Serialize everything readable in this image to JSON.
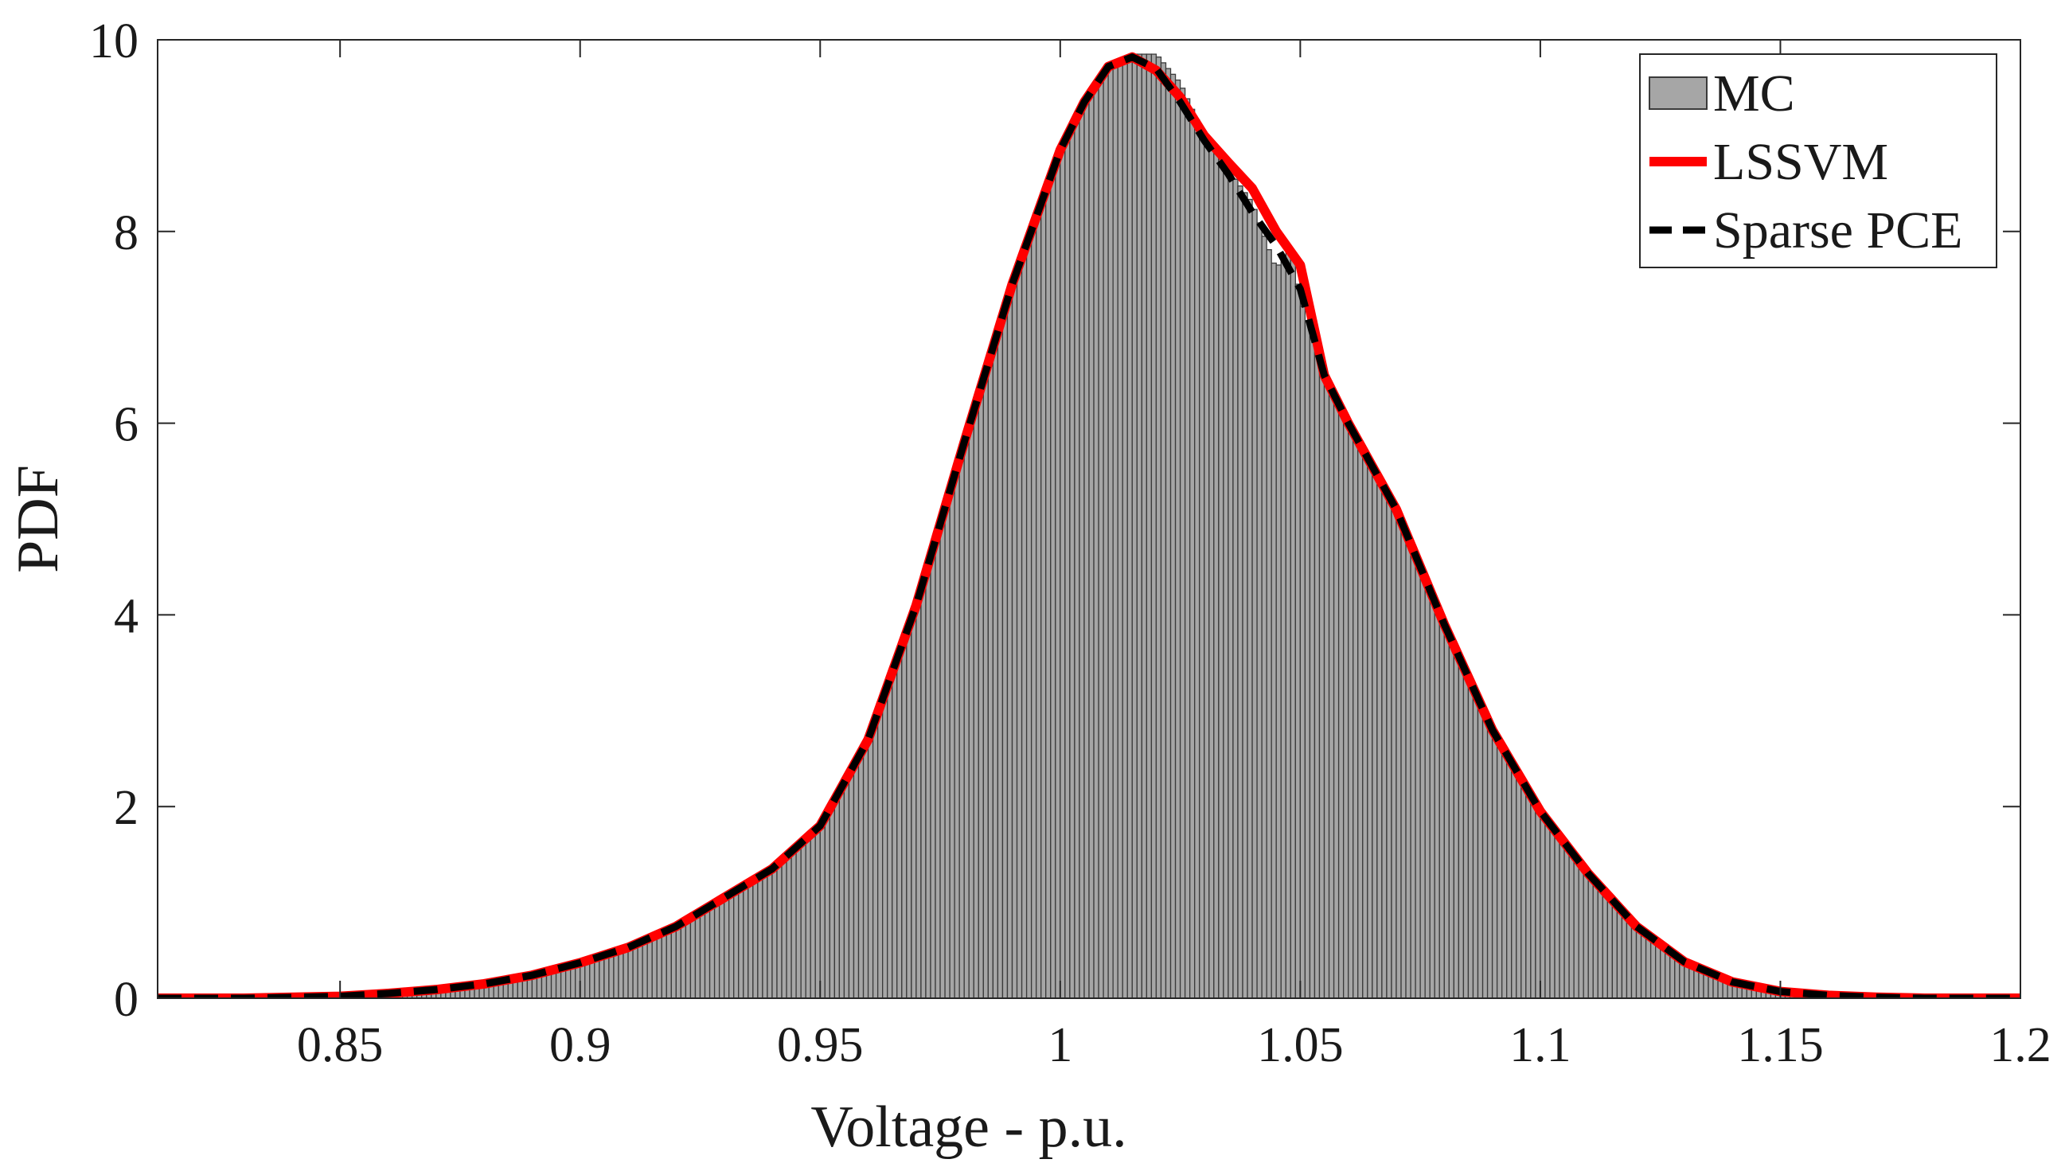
{
  "chart_data": {
    "type": "histogram_with_lines",
    "xlabel": "Voltage - p.u.",
    "ylabel": "PDF",
    "xlim": [
      0.812,
      1.2
    ],
    "ylim": [
      0,
      10
    ],
    "xticks": [
      0.85,
      0.9,
      0.95,
      1,
      1.05,
      1.1,
      1.15,
      1.2
    ],
    "xtick_labels": [
      "0.85",
      "0.9",
      "0.95",
      "1",
      "1.05",
      "1.1",
      "1.15",
      "1.2"
    ],
    "yticks": [
      0,
      2,
      4,
      6,
      8,
      10
    ],
    "ytick_labels": [
      "0",
      "2",
      "4",
      "6",
      "8",
      "10"
    ],
    "legend_position": "top-right",
    "grid": false,
    "series": [
      {
        "name": "MC",
        "kind": "histogram",
        "color": "#a6a6a6",
        "edge_color": "#3a3a3a",
        "bin_width": 0.001,
        "x": [
          0.812,
          0.83,
          0.85,
          0.86,
          0.87,
          0.88,
          0.89,
          0.9,
          0.91,
          0.92,
          0.93,
          0.94,
          0.95,
          0.96,
          0.97,
          0.98,
          0.99,
          1.0,
          1.005,
          1.01,
          1.015,
          1.02,
          1.025,
          1.03,
          1.035,
          1.04,
          1.045,
          1.048,
          1.05,
          1.055,
          1.06,
          1.065,
          1.07,
          1.08,
          1.09,
          1.1,
          1.11,
          1.12,
          1.13,
          1.14,
          1.15,
          1.16,
          1.17,
          1.18,
          1.19,
          1.2
        ],
        "y": [
          0.0,
          0.0,
          0.02,
          0.05,
          0.09,
          0.15,
          0.24,
          0.37,
          0.53,
          0.75,
          1.05,
          1.35,
          1.8,
          2.7,
          4.1,
          5.8,
          7.4,
          8.8,
          9.35,
          9.7,
          9.85,
          9.85,
          9.55,
          9.0,
          8.65,
          8.3,
          7.6,
          7.9,
          7.3,
          6.5,
          6.0,
          5.55,
          5.1,
          3.9,
          2.8,
          1.95,
          1.3,
          0.75,
          0.38,
          0.17,
          0.07,
          0.03,
          0.01,
          0.0,
          0.0,
          0.0
        ]
      },
      {
        "name": "LSSVM",
        "kind": "line",
        "color": "#ff0000",
        "x": [
          0.812,
          0.83,
          0.85,
          0.86,
          0.87,
          0.88,
          0.89,
          0.9,
          0.91,
          0.92,
          0.93,
          0.94,
          0.95,
          0.96,
          0.97,
          0.98,
          0.99,
          1.0,
          1.005,
          1.01,
          1.015,
          1.02,
          1.025,
          1.03,
          1.035,
          1.04,
          1.045,
          1.05,
          1.055,
          1.06,
          1.065,
          1.07,
          1.08,
          1.09,
          1.1,
          1.11,
          1.12,
          1.13,
          1.14,
          1.15,
          1.16,
          1.17,
          1.18,
          1.19,
          1.2
        ],
        "y": [
          0.0,
          0.0,
          0.02,
          0.05,
          0.09,
          0.15,
          0.24,
          0.37,
          0.53,
          0.75,
          1.05,
          1.35,
          1.8,
          2.7,
          4.1,
          5.8,
          7.45,
          8.85,
          9.35,
          9.72,
          9.82,
          9.68,
          9.4,
          9.0,
          8.72,
          8.45,
          8.0,
          7.65,
          6.5,
          6.0,
          5.55,
          5.1,
          3.9,
          2.8,
          1.95,
          1.3,
          0.75,
          0.38,
          0.17,
          0.07,
          0.03,
          0.01,
          0.0,
          0.0,
          0.0
        ]
      },
      {
        "name": "Sparse PCE",
        "kind": "line",
        "style": "dashed",
        "color": "#000000",
        "x": [
          0.812,
          0.83,
          0.85,
          0.86,
          0.87,
          0.88,
          0.89,
          0.9,
          0.91,
          0.92,
          0.93,
          0.94,
          0.95,
          0.96,
          0.97,
          0.98,
          0.99,
          1.0,
          1.005,
          1.01,
          1.015,
          1.02,
          1.025,
          1.03,
          1.035,
          1.04,
          1.045,
          1.05,
          1.055,
          1.06,
          1.065,
          1.07,
          1.08,
          1.09,
          1.1,
          1.11,
          1.12,
          1.13,
          1.14,
          1.15,
          1.16,
          1.17,
          1.18,
          1.19,
          1.2
        ],
        "y": [
          0.0,
          0.0,
          0.02,
          0.05,
          0.09,
          0.15,
          0.24,
          0.37,
          0.53,
          0.75,
          1.05,
          1.35,
          1.8,
          2.7,
          4.1,
          5.8,
          7.45,
          8.85,
          9.35,
          9.72,
          9.82,
          9.7,
          9.35,
          8.95,
          8.6,
          8.2,
          7.85,
          7.4,
          6.5,
          6.0,
          5.55,
          5.1,
          3.9,
          2.8,
          1.95,
          1.3,
          0.75,
          0.38,
          0.17,
          0.07,
          0.03,
          0.01,
          0.0,
          0.0,
          0.0
        ]
      }
    ]
  }
}
